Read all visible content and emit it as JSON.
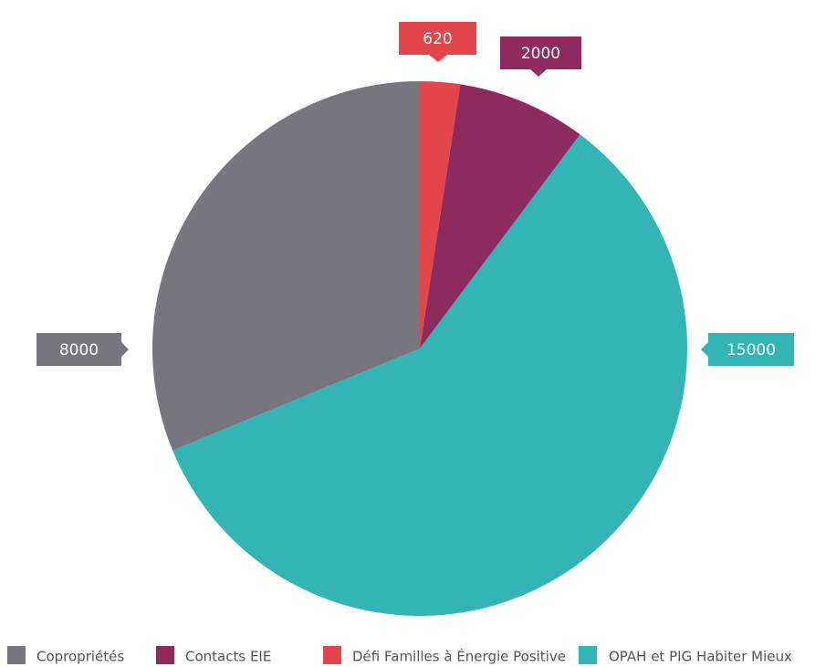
{
  "chart_data": {
    "type": "pie",
    "categories": [
      "Copropriétés",
      "Contacts EIE",
      "Défi Familles à Énergie Positive",
      "OPAH et PIG Habiter Mieux"
    ],
    "values": [
      8000,
      2000,
      620,
      15000
    ],
    "colors": [
      "#77767e",
      "#8e2a5e",
      "#e2464a",
      "#33b5b5"
    ],
    "legend": "bottom"
  }
}
